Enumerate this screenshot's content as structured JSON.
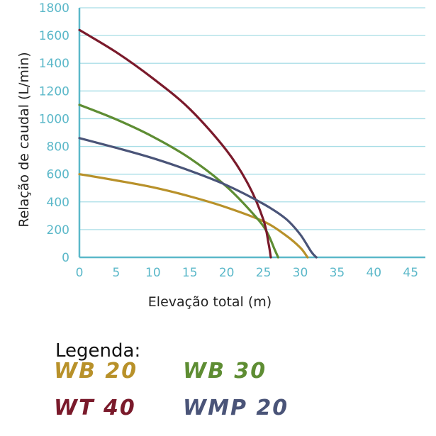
{
  "chart_data": {
    "type": "line",
    "xlabel": "Elevação total (m)",
    "ylabel": "Relação de caudal (L/min)",
    "xlim": [
      0,
      47
    ],
    "ylim": [
      0,
      1800
    ],
    "xticks": [
      0,
      5,
      10,
      15,
      20,
      25,
      30,
      35,
      40,
      45
    ],
    "yticks": [
      0,
      200,
      400,
      600,
      800,
      1000,
      1200,
      1400,
      1600,
      1800
    ],
    "grid": "horizontal",
    "legend_title": "Legenda:",
    "legend_position": "bottom",
    "series": [
      {
        "name": "WB 20",
        "color": "#b8912a",
        "x": [
          0,
          5,
          10,
          15,
          20,
          25,
          28,
          30,
          31
        ],
        "y": [
          600,
          555,
          505,
          440,
          360,
          260,
          160,
          70,
          0
        ]
      },
      {
        "name": "WB 30",
        "color": "#5e8d33",
        "x": [
          0,
          5,
          10,
          15,
          20,
          24,
          25.5,
          26.5,
          27
        ],
        "y": [
          1100,
          995,
          870,
          715,
          510,
          290,
          180,
          60,
          0
        ]
      },
      {
        "name": "WT 40",
        "color": "#7a1a2b",
        "x": [
          0,
          5,
          10,
          15,
          20,
          23,
          25,
          25.7,
          26
        ],
        "y": [
          1640,
          1480,
          1290,
          1070,
          770,
          520,
          270,
          100,
          0
        ]
      },
      {
        "name": "WMP 20",
        "color": "#4a5478",
        "x": [
          0,
          5,
          10,
          15,
          20,
          25,
          28,
          30,
          31.5,
          32.2
        ],
        "y": [
          860,
          790,
          715,
          625,
          520,
          385,
          280,
          165,
          40,
          0
        ]
      }
    ]
  }
}
